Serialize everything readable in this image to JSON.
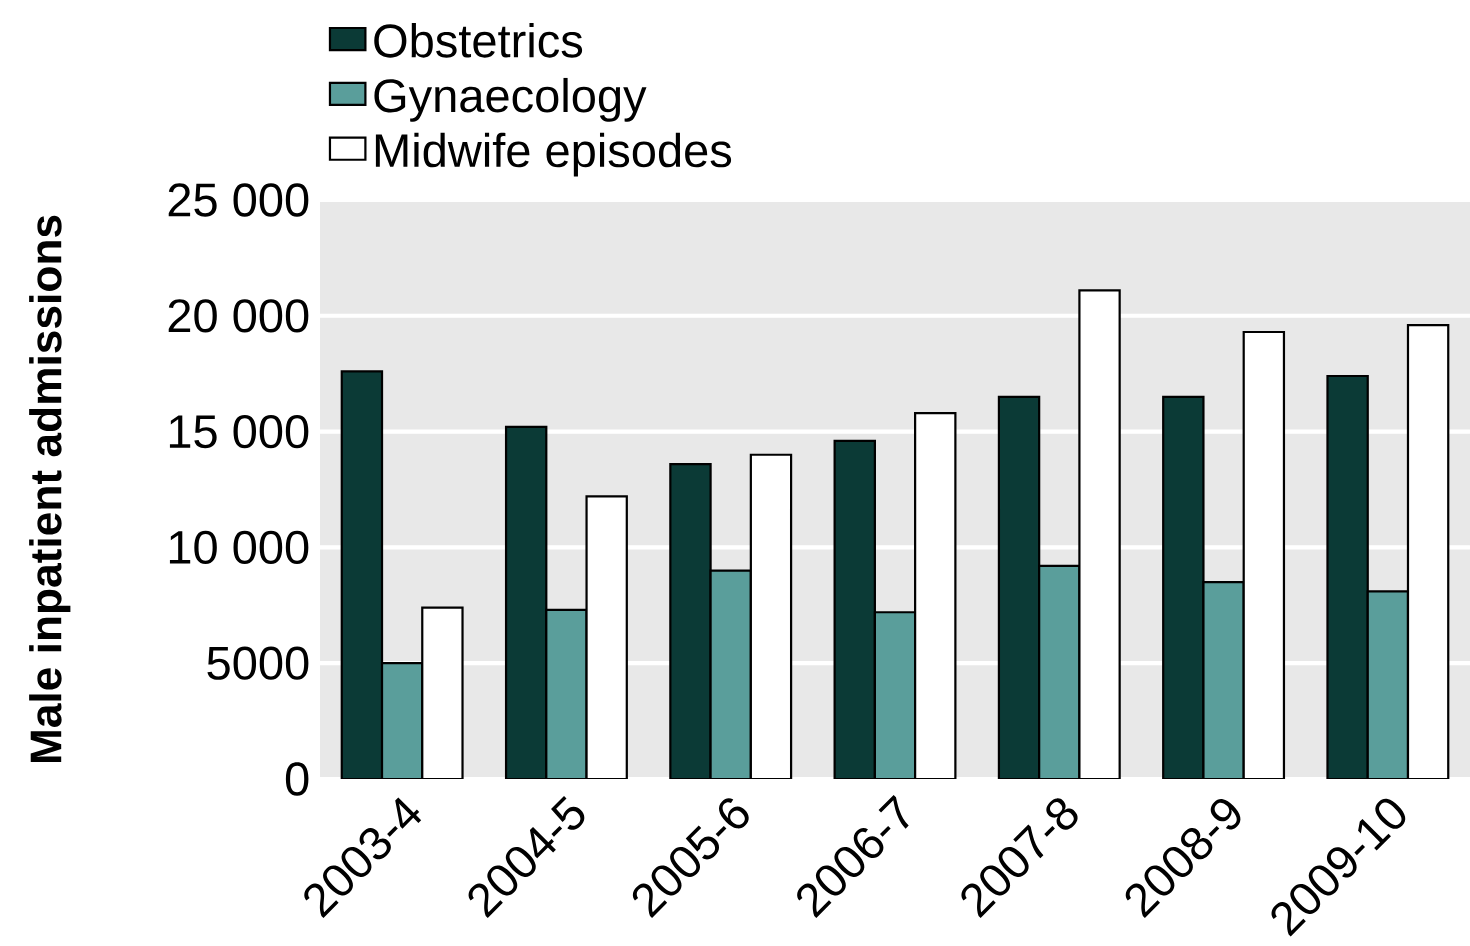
{
  "chart_data": {
    "type": "bar",
    "ylabel": "Male inpatient admissions",
    "categories": [
      "2003-4",
      "2004-5",
      "2005-6",
      "2006-7",
      "2007-8",
      "2008-9",
      "2009-10"
    ],
    "series": [
      {
        "name": "Obstetrics",
        "color": "#0b3a36",
        "values": [
          17600,
          15200,
          13600,
          14600,
          16500,
          16500,
          17400
        ]
      },
      {
        "name": "Gynaecology",
        "color": "#5a9e9b",
        "values": [
          5000,
          7300,
          9000,
          7200,
          9200,
          8500,
          8100
        ]
      },
      {
        "name": "Midwife episodes",
        "color": "#ffffff",
        "values": [
          7400,
          12200,
          14000,
          15800,
          21100,
          19300,
          19600
        ]
      }
    ],
    "ylim": [
      0,
      25000
    ],
    "yticks": [
      0,
      5000,
      {
        "value": 10000,
        "label": "10 000"
      },
      {
        "value": 15000,
        "label": "15 000"
      },
      {
        "value": 20000,
        "label": "20 000"
      },
      {
        "value": 25000,
        "label": "25 000"
      }
    ],
    "grid": "y",
    "legend": "top left"
  }
}
